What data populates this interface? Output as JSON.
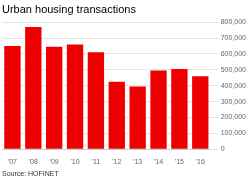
{
  "chart_data": {
    "type": "bar",
    "title": "Urban housing transactions",
    "annotations": [
      "Source: HOFINET"
    ],
    "categories": [
      "'07",
      "'08",
      "'09",
      "'10",
      "'11",
      "'12",
      "'13",
      "'14",
      "'15",
      "'16"
    ],
    "values": [
      650000,
      770000,
      645000,
      660000,
      610000,
      425000,
      395000,
      495000,
      505000,
      460000
    ],
    "color": "#ee0000",
    "ylim": [
      0,
      800000
    ],
    "yticks": [
      0,
      {
        "value": 100000,
        "label": "100,000"
      },
      {
        "value": 200000,
        "label": "200,000"
      },
      {
        "value": 300000,
        "label": "300,000"
      },
      {
        "value": 400000,
        "label": "400,000"
      },
      {
        "value": 500000,
        "label": "500,000"
      },
      {
        "value": 600000,
        "label": "600,000"
      },
      {
        "value": 700000,
        "label": "700,000"
      },
      {
        "value": 800000,
        "label": "800,000"
      }
    ],
    "grid": true
  }
}
